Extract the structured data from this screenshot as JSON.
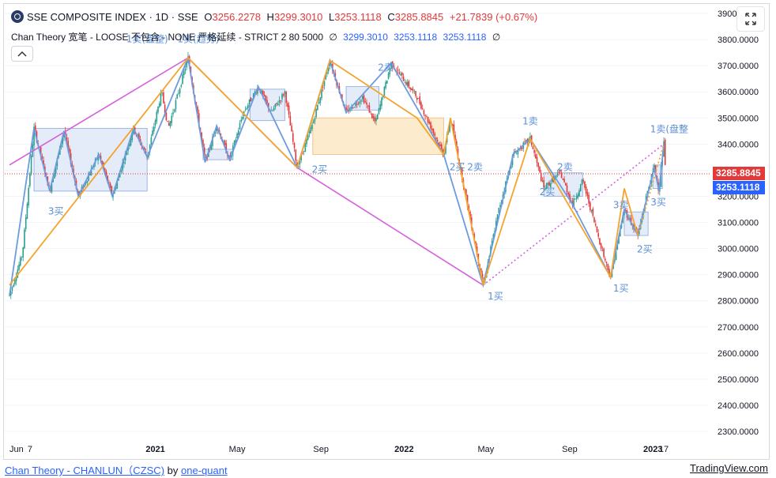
{
  "header": {
    "symbol": "SSE COMPOSITE INDEX · 1D · SSE",
    "open_label": "O",
    "open": "3256.2278",
    "high_label": "H",
    "high": "3299.3010",
    "low_label": "L",
    "low": "3253.1118",
    "close_label": "C",
    "close": "3285.8845",
    "change": "+21.7839 (+0.67%)"
  },
  "indicator": {
    "title": "Chan Theory 宽笔 - LOOSE 不包含 - NONE 严格延续 - STRICT 2 80 5000",
    "v1_mark": "∅",
    "v1": "3299.3010",
    "v2": "3253.1118",
    "v3": "3253.1118",
    "v4_mark": "∅"
  },
  "price_tags": {
    "close": "3285.8845",
    "low": "3253.1118"
  },
  "footer": {
    "script_name": "Chan Theory - CHANLUN（CZSC)",
    "by": "by",
    "author": "one-quant",
    "brand": "TradingView.com"
  },
  "colors": {
    "up": "#2a9d8f",
    "down": "#e23a3a",
    "bi": "#6b9be0",
    "seg": "#f4a42c",
    "high_seg": "#d65fe0",
    "zs_blue": "#dbe5f7",
    "zs_orange": "#fde7c6",
    "signal": "#5b8ed6",
    "axis_text": "#131722"
  },
  "chart_data": {
    "type": "candlestick",
    "title": "SSE COMPOSITE INDEX · 1D · SSE",
    "ylim": [
      2230,
      3930
    ],
    "y_ticks": [
      "3900.0000",
      "3800.0000",
      "3700.0000",
      "3600.0000",
      "3500.0000",
      "3400.0000",
      "3300.0000",
      "3200.0000",
      "3100.0000",
      "3000.0000",
      "2900.0000",
      "2800.0000",
      "2700.0000",
      "2600.0000",
      "2500.0000",
      "2400.0000",
      "2300.0000"
    ],
    "x_ticks": [
      "Jun",
      "7",
      "2021",
      "May",
      "Sep",
      "2022",
      "May",
      "Sep",
      "2023",
      "17"
    ],
    "x_tick_dates": [
      "2020-06-01",
      "2020-07-01",
      "2021-01-01",
      "2021-05-01",
      "2021-09-01",
      "2022-01-01",
      "2022-05-01",
      "2022-09-01",
      "2023-01-01",
      "2023-01-17"
    ],
    "x_range": [
      "2020-06-01",
      "2023-01-17"
    ],
    "last_close": 3285.8845,
    "last_low": 3253.1118,
    "swing_points": [
      {
        "date": "2020-06-01",
        "price": 2820
      },
      {
        "date": "2020-06-20",
        "price": 2980
      },
      {
        "date": "2020-07-07",
        "price": 3460
      },
      {
        "date": "2020-07-30",
        "price": 3220
      },
      {
        "date": "2020-08-20",
        "price": 3450
      },
      {
        "date": "2020-09-10",
        "price": 3200
      },
      {
        "date": "2020-10-10",
        "price": 3360
      },
      {
        "date": "2020-10-30",
        "price": 3200
      },
      {
        "date": "2020-11-30",
        "price": 3460
      },
      {
        "date": "2020-12-20",
        "price": 3350
      },
      {
        "date": "2021-01-10",
        "price": 3600
      },
      {
        "date": "2021-01-20",
        "price": 3460
      },
      {
        "date": "2021-02-18",
        "price": 3730
      },
      {
        "date": "2021-03-15",
        "price": 3330
      },
      {
        "date": "2021-04-01",
        "price": 3470
      },
      {
        "date": "2021-04-20",
        "price": 3340
      },
      {
        "date": "2021-05-10",
        "price": 3520
      },
      {
        "date": "2021-06-01",
        "price": 3620
      },
      {
        "date": "2021-06-20",
        "price": 3520
      },
      {
        "date": "2021-07-10",
        "price": 3600
      },
      {
        "date": "2021-07-28",
        "price": 3310
      },
      {
        "date": "2021-08-20",
        "price": 3480
      },
      {
        "date": "2021-09-14",
        "price": 3720
      },
      {
        "date": "2021-10-08",
        "price": 3520
      },
      {
        "date": "2021-11-01",
        "price": 3580
      },
      {
        "date": "2021-11-20",
        "price": 3480
      },
      {
        "date": "2021-12-13",
        "price": 3710
      },
      {
        "date": "2022-01-20",
        "price": 3580
      },
      {
        "date": "2022-02-28",
        "price": 3360
      },
      {
        "date": "2022-03-10",
        "price": 3500
      },
      {
        "date": "2022-04-27",
        "price": 2860
      },
      {
        "date": "2022-05-20",
        "price": 3150
      },
      {
        "date": "2022-06-10",
        "price": 3360
      },
      {
        "date": "2022-07-05",
        "price": 3420
      },
      {
        "date": "2022-07-25",
        "price": 3230
      },
      {
        "date": "2022-08-18",
        "price": 3290
      },
      {
        "date": "2022-09-05",
        "price": 3170
      },
      {
        "date": "2022-09-20",
        "price": 3260
      },
      {
        "date": "2022-10-20",
        "price": 2980
      },
      {
        "date": "2022-10-31",
        "price": 2890
      },
      {
        "date": "2022-11-20",
        "price": 3150
      },
      {
        "date": "2022-12-10",
        "price": 3050
      },
      {
        "date": "2022-12-25",
        "price": 3230
      },
      {
        "date": "2023-01-03",
        "price": 3310
      },
      {
        "date": "2023-01-10",
        "price": 3220
      },
      {
        "date": "2023-01-14",
        "price": 3340
      },
      {
        "date": "2023-01-17",
        "price": 3400
      },
      {
        "date": "2023-01-20",
        "price": 3286
      }
    ],
    "bi_points": [
      {
        "date": "2020-06-01",
        "price": 2820
      },
      {
        "date": "2020-07-07",
        "price": 3460
      },
      {
        "date": "2020-07-30",
        "price": 3220
      },
      {
        "date": "2020-08-20",
        "price": 3450
      },
      {
        "date": "2020-09-10",
        "price": 3200
      },
      {
        "date": "2020-10-10",
        "price": 3360
      },
      {
        "date": "2020-10-30",
        "price": 3200
      },
      {
        "date": "2020-11-30",
        "price": 3460
      },
      {
        "date": "2020-12-20",
        "price": 3350
      },
      {
        "date": "2021-02-18",
        "price": 3730
      },
      {
        "date": "2021-03-15",
        "price": 3330
      },
      {
        "date": "2021-04-01",
        "price": 3470
      },
      {
        "date": "2021-04-20",
        "price": 3340
      },
      {
        "date": "2021-06-01",
        "price": 3620
      },
      {
        "date": "2021-07-28",
        "price": 3310
      },
      {
        "date": "2021-09-14",
        "price": 3720
      },
      {
        "date": "2021-10-08",
        "price": 3520
      },
      {
        "date": "2021-12-13",
        "price": 3710
      },
      {
        "date": "2022-02-28",
        "price": 3360
      },
      {
        "date": "2022-04-27",
        "price": 2860
      },
      {
        "date": "2022-06-10",
        "price": 3360
      },
      {
        "date": "2022-07-05",
        "price": 3420
      },
      {
        "date": "2022-09-05",
        "price": 3170
      },
      {
        "date": "2022-10-31",
        "price": 2890
      },
      {
        "date": "2022-11-20",
        "price": 3150
      },
      {
        "date": "2022-12-10",
        "price": 3050
      },
      {
        "date": "2023-01-03",
        "price": 3310
      },
      {
        "date": "2023-01-10",
        "price": 3220
      },
      {
        "date": "2023-01-17",
        "price": 3400
      }
    ],
    "segment_points": [
      {
        "date": "2020-06-01",
        "price": 2860
      },
      {
        "date": "2021-02-18",
        "price": 3730
      },
      {
        "date": "2021-07-28",
        "price": 3310
      },
      {
        "date": "2021-09-14",
        "price": 3720
      },
      {
        "date": "2022-01-20",
        "price": 3500
      },
      {
        "date": "2022-02-28",
        "price": 3360
      },
      {
        "date": "2022-03-10",
        "price": 3500
      },
      {
        "date": "2022-04-27",
        "price": 2860
      },
      {
        "date": "2022-07-05",
        "price": 3420
      },
      {
        "date": "2022-10-31",
        "price": 2890
      },
      {
        "date": "2022-11-20",
        "price": 3230
      },
      {
        "date": "2022-12-10",
        "price": 3050
      }
    ],
    "segment_dotted": [
      {
        "date": "2022-12-10",
        "price": 3050
      },
      {
        "date": "2023-01-17",
        "price": 3400
      }
    ],
    "high_segment_points": [
      {
        "date": "2020-06-01",
        "price": 3320
      },
      {
        "date": "2021-02-18",
        "price": 3730
      },
      {
        "date": "2021-07-28",
        "price": 3310
      },
      {
        "date": "2022-04-27",
        "price": 2860
      }
    ],
    "high_segment_dotted": [
      {
        "date": "2022-04-27",
        "price": 2860
      },
      {
        "date": "2023-01-17",
        "price": 3400
      }
    ],
    "zhongshu": [
      {
        "x0": "2020-07-07",
        "x1": "2020-12-20",
        "top": 3460,
        "bottom": 3220,
        "color": "blue"
      },
      {
        "x0": "2021-03-12",
        "x1": "2021-04-25",
        "top": 3380,
        "bottom": 3340,
        "color": "blue"
      },
      {
        "x0": "2021-05-20",
        "x1": "2021-07-10",
        "top": 3610,
        "bottom": 3490,
        "color": "blue"
      },
      {
        "x0": "2021-08-20",
        "x1": "2022-02-28",
        "top": 3500,
        "bottom": 3360,
        "color": "orange"
      },
      {
        "x0": "2021-10-08",
        "x1": "2021-11-25",
        "top": 3620,
        "bottom": 3530,
        "color": "blue"
      },
      {
        "x0": "2022-07-25",
        "x1": "2022-09-20",
        "top": 3290,
        "bottom": 3200,
        "color": "blue"
      },
      {
        "x0": "2022-11-20",
        "x1": "2022-12-25",
        "top": 3140,
        "bottom": 3050,
        "color": "blue"
      },
      {
        "x0": "2023-01-01",
        "x1": "2023-01-15",
        "top": 3320,
        "bottom": 3230,
        "color": "blue"
      }
    ],
    "signals": [
      {
        "text": "1卖(盘整)",
        "date": "2020-12-20",
        "price": 3790
      },
      {
        "text": "1卖(趋势)",
        "date": "2021-03-05",
        "price": 3790
      },
      {
        "text": "3买",
        "date": "2020-08-08",
        "price": 3130
      },
      {
        "text": "2卖",
        "date": "2021-12-05",
        "price": 3680
      },
      {
        "text": "2买",
        "date": "2021-08-30",
        "price": 3290
      },
      {
        "text": "2买",
        "date": "2022-03-20",
        "price": 3300
      },
      {
        "text": "2卖",
        "date": "2022-04-15",
        "price": 3300
      },
      {
        "text": "1卖",
        "date": "2022-07-05",
        "price": 3475
      },
      {
        "text": "2卖",
        "date": "2022-08-25",
        "price": 3300
      },
      {
        "text": "2买",
        "date": "2022-07-30",
        "price": 3205
      },
      {
        "text": "1买",
        "date": "2022-05-15",
        "price": 2805
      },
      {
        "text": "3卖",
        "date": "2022-11-15",
        "price": 3155
      },
      {
        "text": "2买",
        "date": "2022-12-20",
        "price": 2985
      },
      {
        "text": "1买",
        "date": "2022-11-15",
        "price": 2835
      },
      {
        "text": "3买",
        "date": "2023-01-09",
        "price": 3165
      },
      {
        "text": "1卖(盘整",
        "date": "2023-01-25",
        "price": 3445
      }
    ]
  }
}
